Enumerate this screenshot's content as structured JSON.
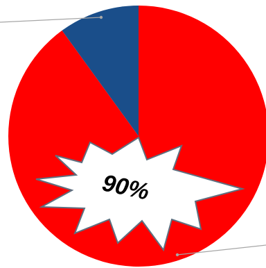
{
  "chart_data": {
    "type": "pie",
    "slices": [
      {
        "value": 90,
        "color": "#ff0000"
      },
      {
        "value": 10,
        "color": "#1a4e8a"
      }
    ],
    "annotation": {
      "text": "90%"
    }
  },
  "colors": {
    "leader_line": "#a6a6a6",
    "burst_fill": "#ffffff",
    "burst_stroke": "#5f6f7f",
    "annotation_text": "#000000"
  }
}
